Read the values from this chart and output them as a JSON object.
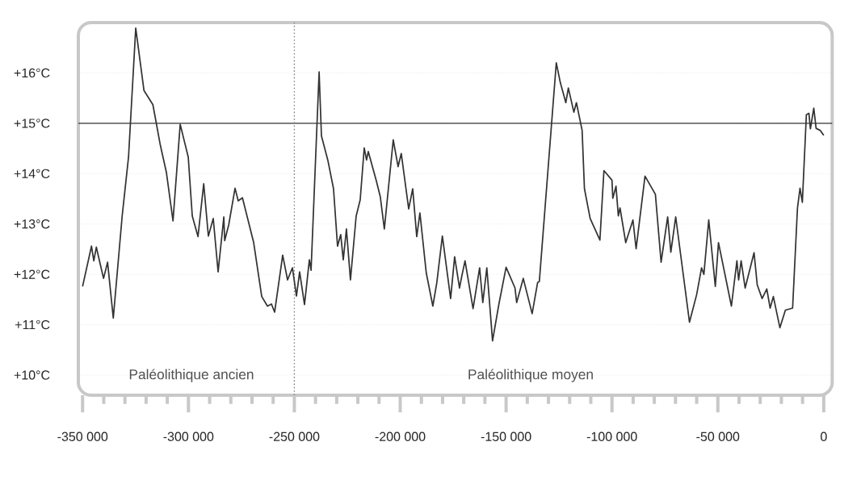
{
  "chart_data": {
    "type": "line",
    "color": "#333333",
    "marker": "none",
    "xlim": [
      -352000,
      4000
    ],
    "ylim": [
      9.6,
      17
    ],
    "xticks": [
      {
        "value": -350000,
        "label": "-350 000"
      },
      {
        "value": -300000,
        "label": "-300 000"
      },
      {
        "value": -250000,
        "label": "-250 000"
      },
      {
        "value": -200000,
        "label": "-200 000"
      },
      {
        "value": -150000,
        "label": "-150 000"
      },
      {
        "value": -100000,
        "label": "-100 000"
      },
      {
        "value": -50000,
        "label": "-50 000"
      },
      0,
      {
        "value": -340000,
        "label": null
      },
      {
        "value": -330000,
        "label": null
      },
      {
        "value": -320000,
        "label": null
      },
      {
        "value": -310000,
        "label": null
      },
      {
        "value": -290000,
        "label": null
      },
      {
        "value": -280000,
        "label": null
      },
      {
        "value": -270000,
        "label": null
      },
      {
        "value": -260000,
        "label": null
      },
      {
        "value": -240000,
        "label": null
      },
      {
        "value": -230000,
        "label": null
      },
      {
        "value": -220000,
        "label": null
      },
      {
        "value": -210000,
        "label": null
      },
      {
        "value": -190000,
        "label": null
      },
      {
        "value": -180000,
        "label": null
      },
      {
        "value": -170000,
        "label": null
      },
      {
        "value": -160000,
        "label": null
      },
      {
        "value": -140000,
        "label": null
      },
      {
        "value": -130000,
        "label": null
      },
      {
        "value": -120000,
        "label": null
      },
      {
        "value": -110000,
        "label": null
      },
      {
        "value": -90000,
        "label": null
      },
      {
        "value": -80000,
        "label": null
      },
      {
        "value": -70000,
        "label": null
      },
      {
        "value": -60000,
        "label": null
      },
      {
        "value": -40000,
        "label": null
      },
      {
        "value": -30000,
        "label": null
      },
      {
        "value": -20000,
        "label": null
      },
      {
        "value": -10000,
        "label": null
      }
    ],
    "yticks": [
      {
        "value": 10,
        "label": "+10°C"
      },
      {
        "value": 11,
        "label": "+11°C"
      },
      {
        "value": 12,
        "label": "+12°C"
      },
      {
        "value": 13,
        "label": "+13°C"
      },
      {
        "value": 14,
        "label": "+14°C"
      },
      {
        "value": 15,
        "label": "+15°C"
      },
      {
        "value": 16,
        "label": "+16°C"
      }
    ],
    "grid": "y",
    "ref_lines": [
      {
        "axis": "y",
        "value": 15,
        "color": "#333333"
      },
      {
        "axis": "x",
        "value": -250000,
        "color": "#808080",
        "line_style": "dotted"
      }
    ],
    "annotations": [
      "Paléolithique ancien",
      "Paléolithique moyen"
    ],
    "x": [
      -350000,
      -345800,
      -344700,
      -343500,
      -341600,
      -340100,
      -338200,
      -335500,
      -331300,
      -328300,
      -324900,
      -321000,
      -316800,
      -313400,
      -310400,
      -307300,
      -303900,
      -300100,
      -298200,
      -295500,
      -292800,
      -290600,
      -288300,
      -286000,
      -283300,
      -282900,
      -281000,
      -278000,
      -276500,
      -274500,
      -269200,
      -265400,
      -262700,
      -260800,
      -259300,
      -255500,
      -253200,
      -250900,
      -249000,
      -247500,
      -245200,
      -242900,
      -242100,
      -238300,
      -237200,
      -234200,
      -231500,
      -229600,
      -228100,
      -226900,
      -225400,
      -223500,
      -220800,
      -218900,
      -217000,
      -215900,
      -215100,
      -211300,
      -209400,
      -207500,
      -203300,
      -201000,
      -199500,
      -196000,
      -194100,
      -192200,
      -190700,
      -187700,
      -184600,
      -182700,
      -180100,
      -176200,
      -174300,
      -172000,
      -170900,
      -169400,
      -165600,
      -162500,
      -161000,
      -159100,
      -156400,
      -153400,
      -150000,
      -145800,
      -145000,
      -141900,
      -137700,
      -135100,
      -134300,
      -126300,
      -124400,
      -121800,
      -120600,
      -118000,
      -116800,
      -114100,
      -113000,
      -110300,
      -105700,
      -103800,
      -100000,
      -99600,
      -98100,
      -97000,
      -96200,
      -93500,
      -90100,
      -88600,
      -84400,
      -79500,
      -76800,
      -73700,
      -72200,
      -69900,
      -63400,
      -60000,
      -57700,
      -56600,
      -54300,
      -51200,
      -49700,
      -43600,
      -41000,
      -40200,
      -39000,
      -37100,
      -32900,
      -31400,
      -29100,
      -26900,
      -25300,
      -23800,
      -20700,
      -18100,
      -14700,
      -12400,
      -11200,
      -10100,
      -8200,
      -7000,
      -6300,
      -4700,
      -3600,
      -1700,
      0
    ],
    "values": [
      11.76,
      12.56,
      12.27,
      12.54,
      12.19,
      11.92,
      12.24,
      11.13,
      13.16,
      14.33,
      16.89,
      15.65,
      15.37,
      14.59,
      14.02,
      13.06,
      14.98,
      14.33,
      13.16,
      12.75,
      13.8,
      12.76,
      13.11,
      12.05,
      13.14,
      12.67,
      12.98,
      13.71,
      13.46,
      13.52,
      12.63,
      11.56,
      11.37,
      11.41,
      11.25,
      12.38,
      11.89,
      12.13,
      11.57,
      12.05,
      11.4,
      12.29,
      12.08,
      16.02,
      14.75,
      14.27,
      13.7,
      12.56,
      12.79,
      12.29,
      12.9,
      11.89,
      13.16,
      13.48,
      14.51,
      14.27,
      14.44,
      13.86,
      13.54,
      12.9,
      14.67,
      14.14,
      14.4,
      13.3,
      13.7,
      12.75,
      13.22,
      12.03,
      11.37,
      11.84,
      12.76,
      11.52,
      12.35,
      11.73,
      11.97,
      12.27,
      11.32,
      12.13,
      11.44,
      12.13,
      10.68,
      11.41,
      12.14,
      11.73,
      11.44,
      11.92,
      11.22,
      11.84,
      11.86,
      16.2,
      15.81,
      15.41,
      15.7,
      15.22,
      15.41,
      14.86,
      13.7,
      13.11,
      12.68,
      14.06,
      13.87,
      13.51,
      13.75,
      13.16,
      13.32,
      12.63,
      13.08,
      12.51,
      13.95,
      13.59,
      12.24,
      13.14,
      12.44,
      13.14,
      11.05,
      11.6,
      12.13,
      12.0,
      13.08,
      11.76,
      12.63,
      11.37,
      12.27,
      11.89,
      12.27,
      11.73,
      12.43,
      11.79,
      11.52,
      11.71,
      11.33,
      11.56,
      10.94,
      11.29,
      11.33,
      13.32,
      13.71,
      13.43,
      15.17,
      15.2,
      14.89,
      15.3,
      14.9,
      14.86,
      14.76
    ]
  }
}
